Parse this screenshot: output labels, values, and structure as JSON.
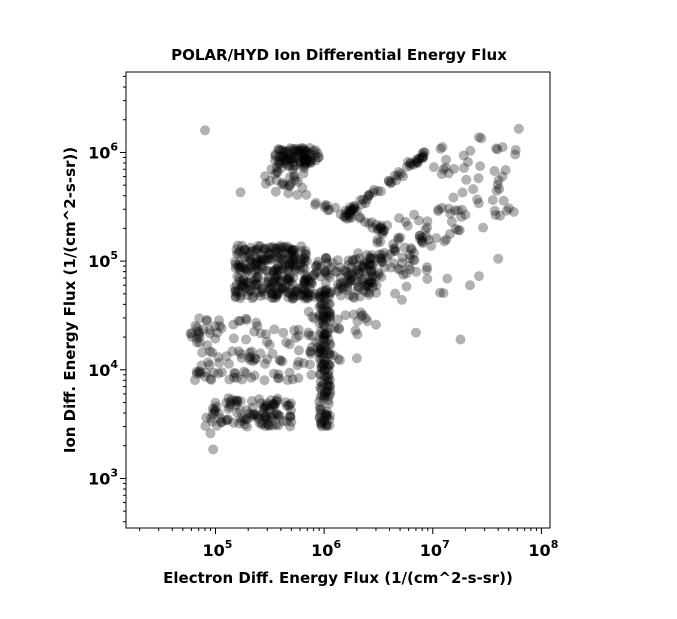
{
  "chart_data": {
    "type": "scatter",
    "title": "POLAR/HYD  Ion Differential Energy Flux",
    "xlabel": "Electron Diff. Energy Flux (1/(cm^2-s-sr))",
    "ylabel": "Ion Diff. Energy Flux (1/(cm^2-s-sr))",
    "xscale": "log",
    "yscale": "log",
    "xlim": [
      15000,
      120000000
    ],
    "ylim": [
      350,
      5500000
    ],
    "xticks": [
      {
        "base": "10",
        "exp": "5",
        "value": 100000
      },
      {
        "base": "10",
        "exp": "6",
        "value": 1000000
      },
      {
        "base": "10",
        "exp": "7",
        "value": 10000000
      },
      {
        "base": "10",
        "exp": "8",
        "value": 100000000
      }
    ],
    "yticks": [
      {
        "base": "10",
        "exp": "3",
        "value": 1000
      },
      {
        "base": "10",
        "exp": "4",
        "value": 10000
      },
      {
        "base": "10",
        "exp": "5",
        "value": 100000
      },
      {
        "base": "10",
        "exp": "6",
        "value": 1000000
      }
    ],
    "grid": false,
    "marker_color": "#000000",
    "marker_alpha": 0.3,
    "clusters": [
      {
        "x_range": [
          350000,
          900000
        ],
        "y_range": [
          750000,
          1100000
        ],
        "count": 90
      },
      {
        "x_range": [
          280000,
          700000
        ],
        "y_range": [
          400000,
          750000
        ],
        "count": 30
      },
      {
        "x_range": [
          150000,
          700000
        ],
        "y_range": [
          80000,
          140000
        ],
        "count": 150
      },
      {
        "x_range": [
          150000,
          800000
        ],
        "y_range": [
          45000,
          75000
        ],
        "count": 140
      },
      {
        "x_range": [
          800000,
          2800000
        ],
        "y_range": [
          45000,
          110000
        ],
        "count": 90
      },
      {
        "x_range": [
          900000,
          1150000
        ],
        "y_range": [
          3000,
          60000
        ],
        "count": 140
      },
      {
        "x_range": [
          80000,
          500000
        ],
        "y_range": [
          3000,
          5500
        ],
        "count": 110
      },
      {
        "x_range": [
          55000,
          250000
        ],
        "y_range": [
          8000,
          30000
        ],
        "count": 80
      },
      {
        "x_range": [
          250000,
          800000
        ],
        "y_range": [
          8000,
          25000
        ],
        "count": 40
      },
      {
        "x_range": [
          2000000,
          3500000
        ],
        "y_range": [
          50000,
          120000
        ],
        "count": 40
      },
      {
        "x_range": [
          700000,
          2500000
        ],
        "y_range": [
          12000,
          40000
        ],
        "count": 30
      },
      {
        "x_range": [
          3000000,
          9000000
        ],
        "y_range": [
          60000,
          250000
        ],
        "count": 45
      },
      {
        "x_range": [
          10000000,
          60000000
        ],
        "y_range": [
          250000,
          1400000
        ],
        "count": 45
      },
      {
        "x_range": [
          4000000,
          30000000
        ],
        "y_range": [
          50000,
          300000
        ],
        "count": 40
      }
    ],
    "diagonal_band": {
      "start": [
        1500000,
        260000
      ],
      "end": [
        9000000,
        1000000
      ],
      "count": 60
    },
    "diagonal_band_lower": {
      "start": [
        700000,
        360000
      ],
      "end": [
        3500000,
        200000
      ],
      "count": 25
    },
    "points": [
      [
        170000,
        430000
      ],
      [
        95000,
        1850
      ],
      [
        18000000,
        19000
      ],
      [
        7000000,
        22000
      ],
      [
        62000000,
        1650000
      ],
      [
        45000000,
        360000
      ],
      [
        15000000,
        230000
      ],
      [
        40000000,
        105000
      ],
      [
        22000000,
        60000
      ],
      [
        5200000,
        44000
      ],
      [
        3000000,
        26000
      ],
      [
        2500000,
        28000
      ],
      [
        6000000,
        90000
      ],
      [
        90000,
        2600
      ],
      [
        80000,
        1600000
      ],
      [
        28000000,
        1350000
      ]
    ]
  }
}
